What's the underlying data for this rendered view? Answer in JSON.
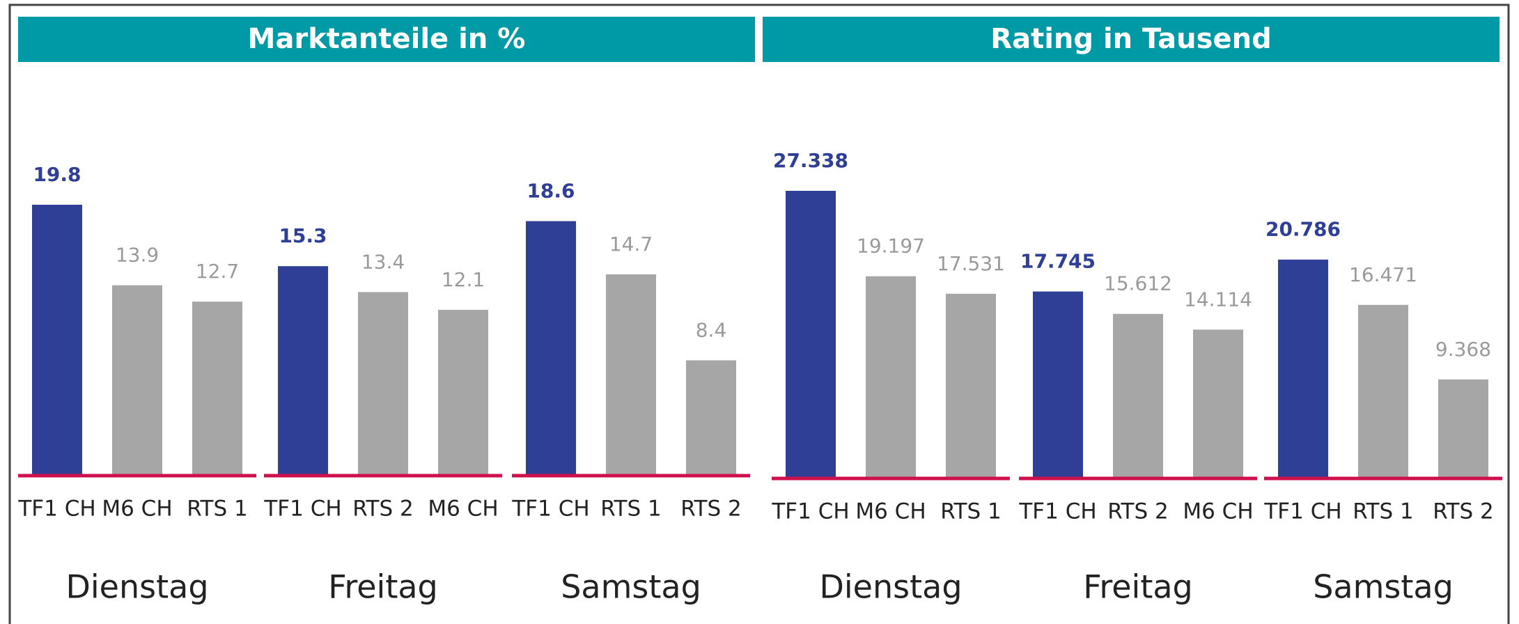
{
  "chart_data": [
    {
      "type": "bar",
      "title": "Marktanteile in %",
      "header_color": "#009aa6",
      "baseline_color": "#d0104c",
      "highlight_color": "#2e3f95",
      "groups": [
        {
          "name": "Dienstag",
          "categories": [
            "TF1 CH",
            "M6 CH",
            "RTS 1"
          ],
          "values": [
            19.8,
            13.9,
            12.7
          ],
          "colors": [
            "#2e3f95",
            "#a6a6a6",
            "#a6a6a6"
          ]
        },
        {
          "name": "Freitag",
          "categories": [
            "TF1 CH",
            "RTS 2",
            "M6 CH"
          ],
          "values": [
            15.3,
            13.4,
            12.1
          ],
          "colors": [
            "#2e3f95",
            "#a6a6a6",
            "#a6a6a6"
          ]
        },
        {
          "name": "Samstag",
          "categories": [
            "TF1 CH",
            "RTS 1",
            "RTS 2"
          ],
          "values": [
            18.6,
            14.7,
            8.4
          ],
          "colors": [
            "#2e3f95",
            "#a6a6a6",
            "#a6a6a6"
          ]
        }
      ]
    },
    {
      "type": "bar",
      "title": "Rating in Tausend",
      "header_color": "#009aa6",
      "baseline_color": "#d0104c",
      "highlight_color": "#2e3f95",
      "groups": [
        {
          "name": "Dienstag",
          "categories": [
            "TF1 CH",
            "M6 CH",
            "RTS 1"
          ],
          "values": [
            27.338,
            19.197,
            17.531
          ],
          "colors": [
            "#2e3f95",
            "#a6a6a6",
            "#a6a6a6"
          ]
        },
        {
          "name": "Freitag",
          "categories": [
            "TF1 CH",
            "RTS 2",
            "M6 CH"
          ],
          "values": [
            17.745,
            15.612,
            14.114
          ],
          "colors": [
            "#2e3f95",
            "#a6a6a6",
            "#a6a6a6"
          ]
        },
        {
          "name": "Samstag",
          "categories": [
            "TF1 CH",
            "RTS 1",
            "RTS 2"
          ],
          "values": [
            20.786,
            16.471,
            9.368
          ],
          "colors": [
            "#2e3f95",
            "#a6a6a6",
            "#a6a6a6"
          ]
        }
      ]
    }
  ]
}
